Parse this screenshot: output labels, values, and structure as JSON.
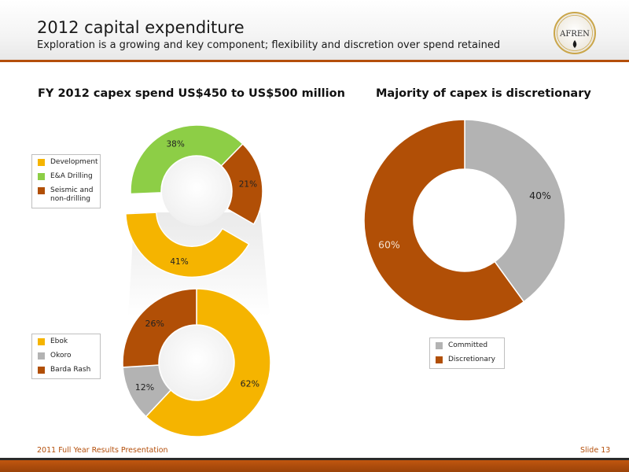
{
  "slide": {
    "title": "2012 capital expenditure",
    "subtitle": "Exploration is a growing and key component; flexibility and discretion over spend retained",
    "logo_text": "AFREN",
    "footer": "2011 Full Year Results Presentation",
    "slide_number": "Slide 13"
  },
  "colors": {
    "orange": "#f5b400",
    "green": "#8dce46",
    "rust": "#b14f06",
    "grey": "#b3b3b3",
    "accent": "#b44f0b"
  },
  "chart_data": [
    {
      "type": "pie",
      "variant": "donut",
      "title": "FY 2012 capex spend US$450 to US$500 million",
      "categories": [
        "Development",
        "E&A Drilling",
        "Seismic and non-drilling"
      ],
      "values": [
        41,
        38,
        21
      ],
      "labels": [
        "41%",
        "38%",
        "21%"
      ],
      "colors": [
        "#f5b400",
        "#8dce46",
        "#b14f06"
      ],
      "legend": "left",
      "exploded": "Development"
    },
    {
      "type": "pie",
      "variant": "donut",
      "title": "",
      "categories": [
        "Ebok",
        "Okoro",
        "Barda Rash"
      ],
      "values": [
        62,
        12,
        26
      ],
      "labels": [
        "62%",
        "12%",
        "26%"
      ],
      "colors": [
        "#f5b400",
        "#b3b3b3",
        "#b14f06"
      ],
      "legend": "left",
      "breakdown_of": "Development"
    },
    {
      "type": "pie",
      "variant": "donut",
      "title": "Majority of capex is discretionary",
      "categories": [
        "Committed",
        "Discretionary"
      ],
      "values": [
        40,
        60
      ],
      "labels": [
        "40%",
        "60%"
      ],
      "colors": [
        "#b3b3b3",
        "#b14f06"
      ],
      "legend": "bottom"
    }
  ]
}
